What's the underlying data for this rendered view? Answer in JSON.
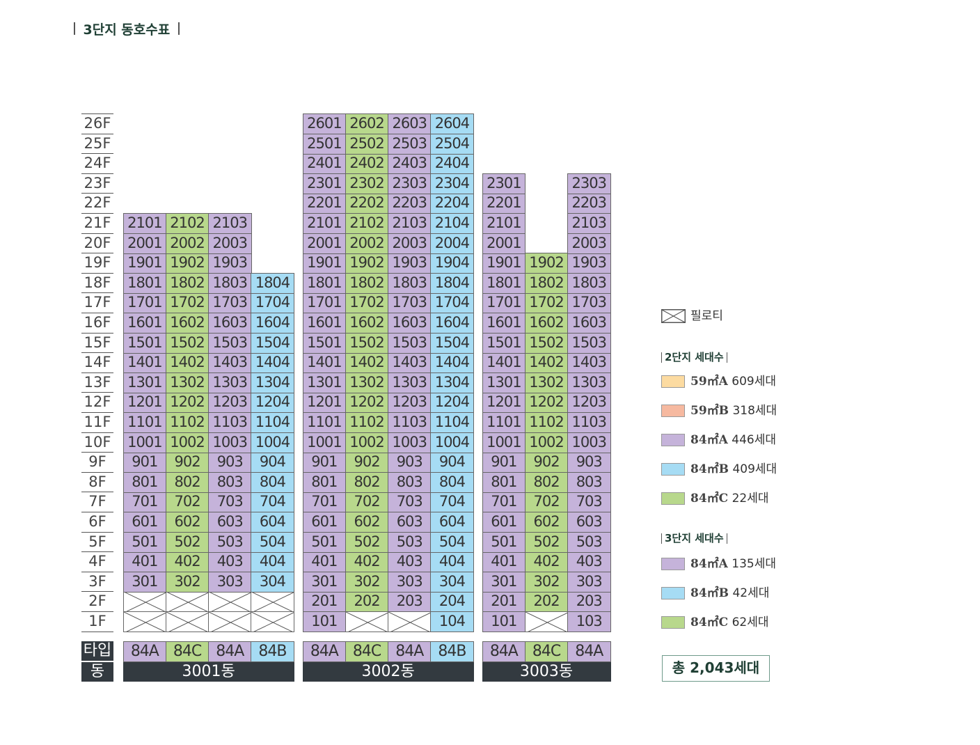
{
  "title": "3단지 동호수표",
  "colors": {
    "84A": "#c5b3da",
    "84B": "#a6dcf4",
    "84C": "#b8d88c",
    "59A": "#fcdba1",
    "59B": "#f6b9a0",
    "dark": "#333a40"
  },
  "floors": [
    "26F",
    "25F",
    "24F",
    "23F",
    "22F",
    "21F",
    "20F",
    "19F",
    "18F",
    "17F",
    "16F",
    "15F",
    "14F",
    "13F",
    "12F",
    "11F",
    "10F",
    "9F",
    "8F",
    "7F",
    "6F",
    "5F",
    "4F",
    "3F",
    "2F",
    "1F"
  ],
  "row_labels": {
    "type": "타입",
    "dong": "동"
  },
  "buildings": [
    {
      "name": "3001동",
      "columns": [
        {
          "unit": 1,
          "type": "84A",
          "top_floor": 21,
          "pilotis_floors": [
            1,
            2
          ]
        },
        {
          "unit": 2,
          "type": "84C",
          "top_floor": 21,
          "pilotis_floors": [
            1,
            2
          ]
        },
        {
          "unit": 3,
          "type": "84A",
          "top_floor": 21,
          "pilotis_floors": [
            1,
            2
          ]
        },
        {
          "unit": 4,
          "type": "84B",
          "top_floor": 18,
          "pilotis_floors": [
            1,
            2
          ]
        }
      ]
    },
    {
      "name": "3002동",
      "columns": [
        {
          "unit": 1,
          "type": "84A",
          "top_floor": 26,
          "pilotis_floors": []
        },
        {
          "unit": 2,
          "type": "84C",
          "top_floor": 26,
          "pilotis_floors": [
            1
          ]
        },
        {
          "unit": 3,
          "type": "84A",
          "top_floor": 26,
          "pilotis_floors": [
            1
          ]
        },
        {
          "unit": 4,
          "type": "84B",
          "top_floor": 26,
          "pilotis_floors": []
        }
      ]
    },
    {
      "name": "3003동",
      "columns": [
        {
          "unit": 1,
          "type": "84A",
          "top_floor": 23,
          "pilotis_floors": []
        },
        {
          "unit": 2,
          "type": "84C",
          "top_floor": 19,
          "pilotis_floors": [
            1
          ]
        },
        {
          "unit": 3,
          "type": "84A",
          "top_floor": 23,
          "pilotis_floors": []
        }
      ]
    }
  ],
  "legend": {
    "pilotis_label": "필로티",
    "complex2": {
      "heading": "2단지 세대수",
      "items": [
        {
          "type": "59㎡A",
          "count": "609세대",
          "color_key": "59A"
        },
        {
          "type": "59㎡B",
          "count": "318세대",
          "color_key": "59B"
        },
        {
          "type": "84㎡A",
          "count": "446세대",
          "color_key": "84A"
        },
        {
          "type": "84㎡B",
          "count": "409세대",
          "color_key": "84B"
        },
        {
          "type": "84㎡C",
          "count": "22세대",
          "color_key": "84C"
        }
      ]
    },
    "complex3": {
      "heading": "3단지 세대수",
      "items": [
        {
          "type": "84㎡A",
          "count": "135세대",
          "color_key": "84A"
        },
        {
          "type": "84㎡B",
          "count": "42세대",
          "color_key": "84B"
        },
        {
          "type": "84㎡C",
          "count": "62세대",
          "color_key": "84C"
        }
      ]
    },
    "total": "총 2,043세대"
  }
}
